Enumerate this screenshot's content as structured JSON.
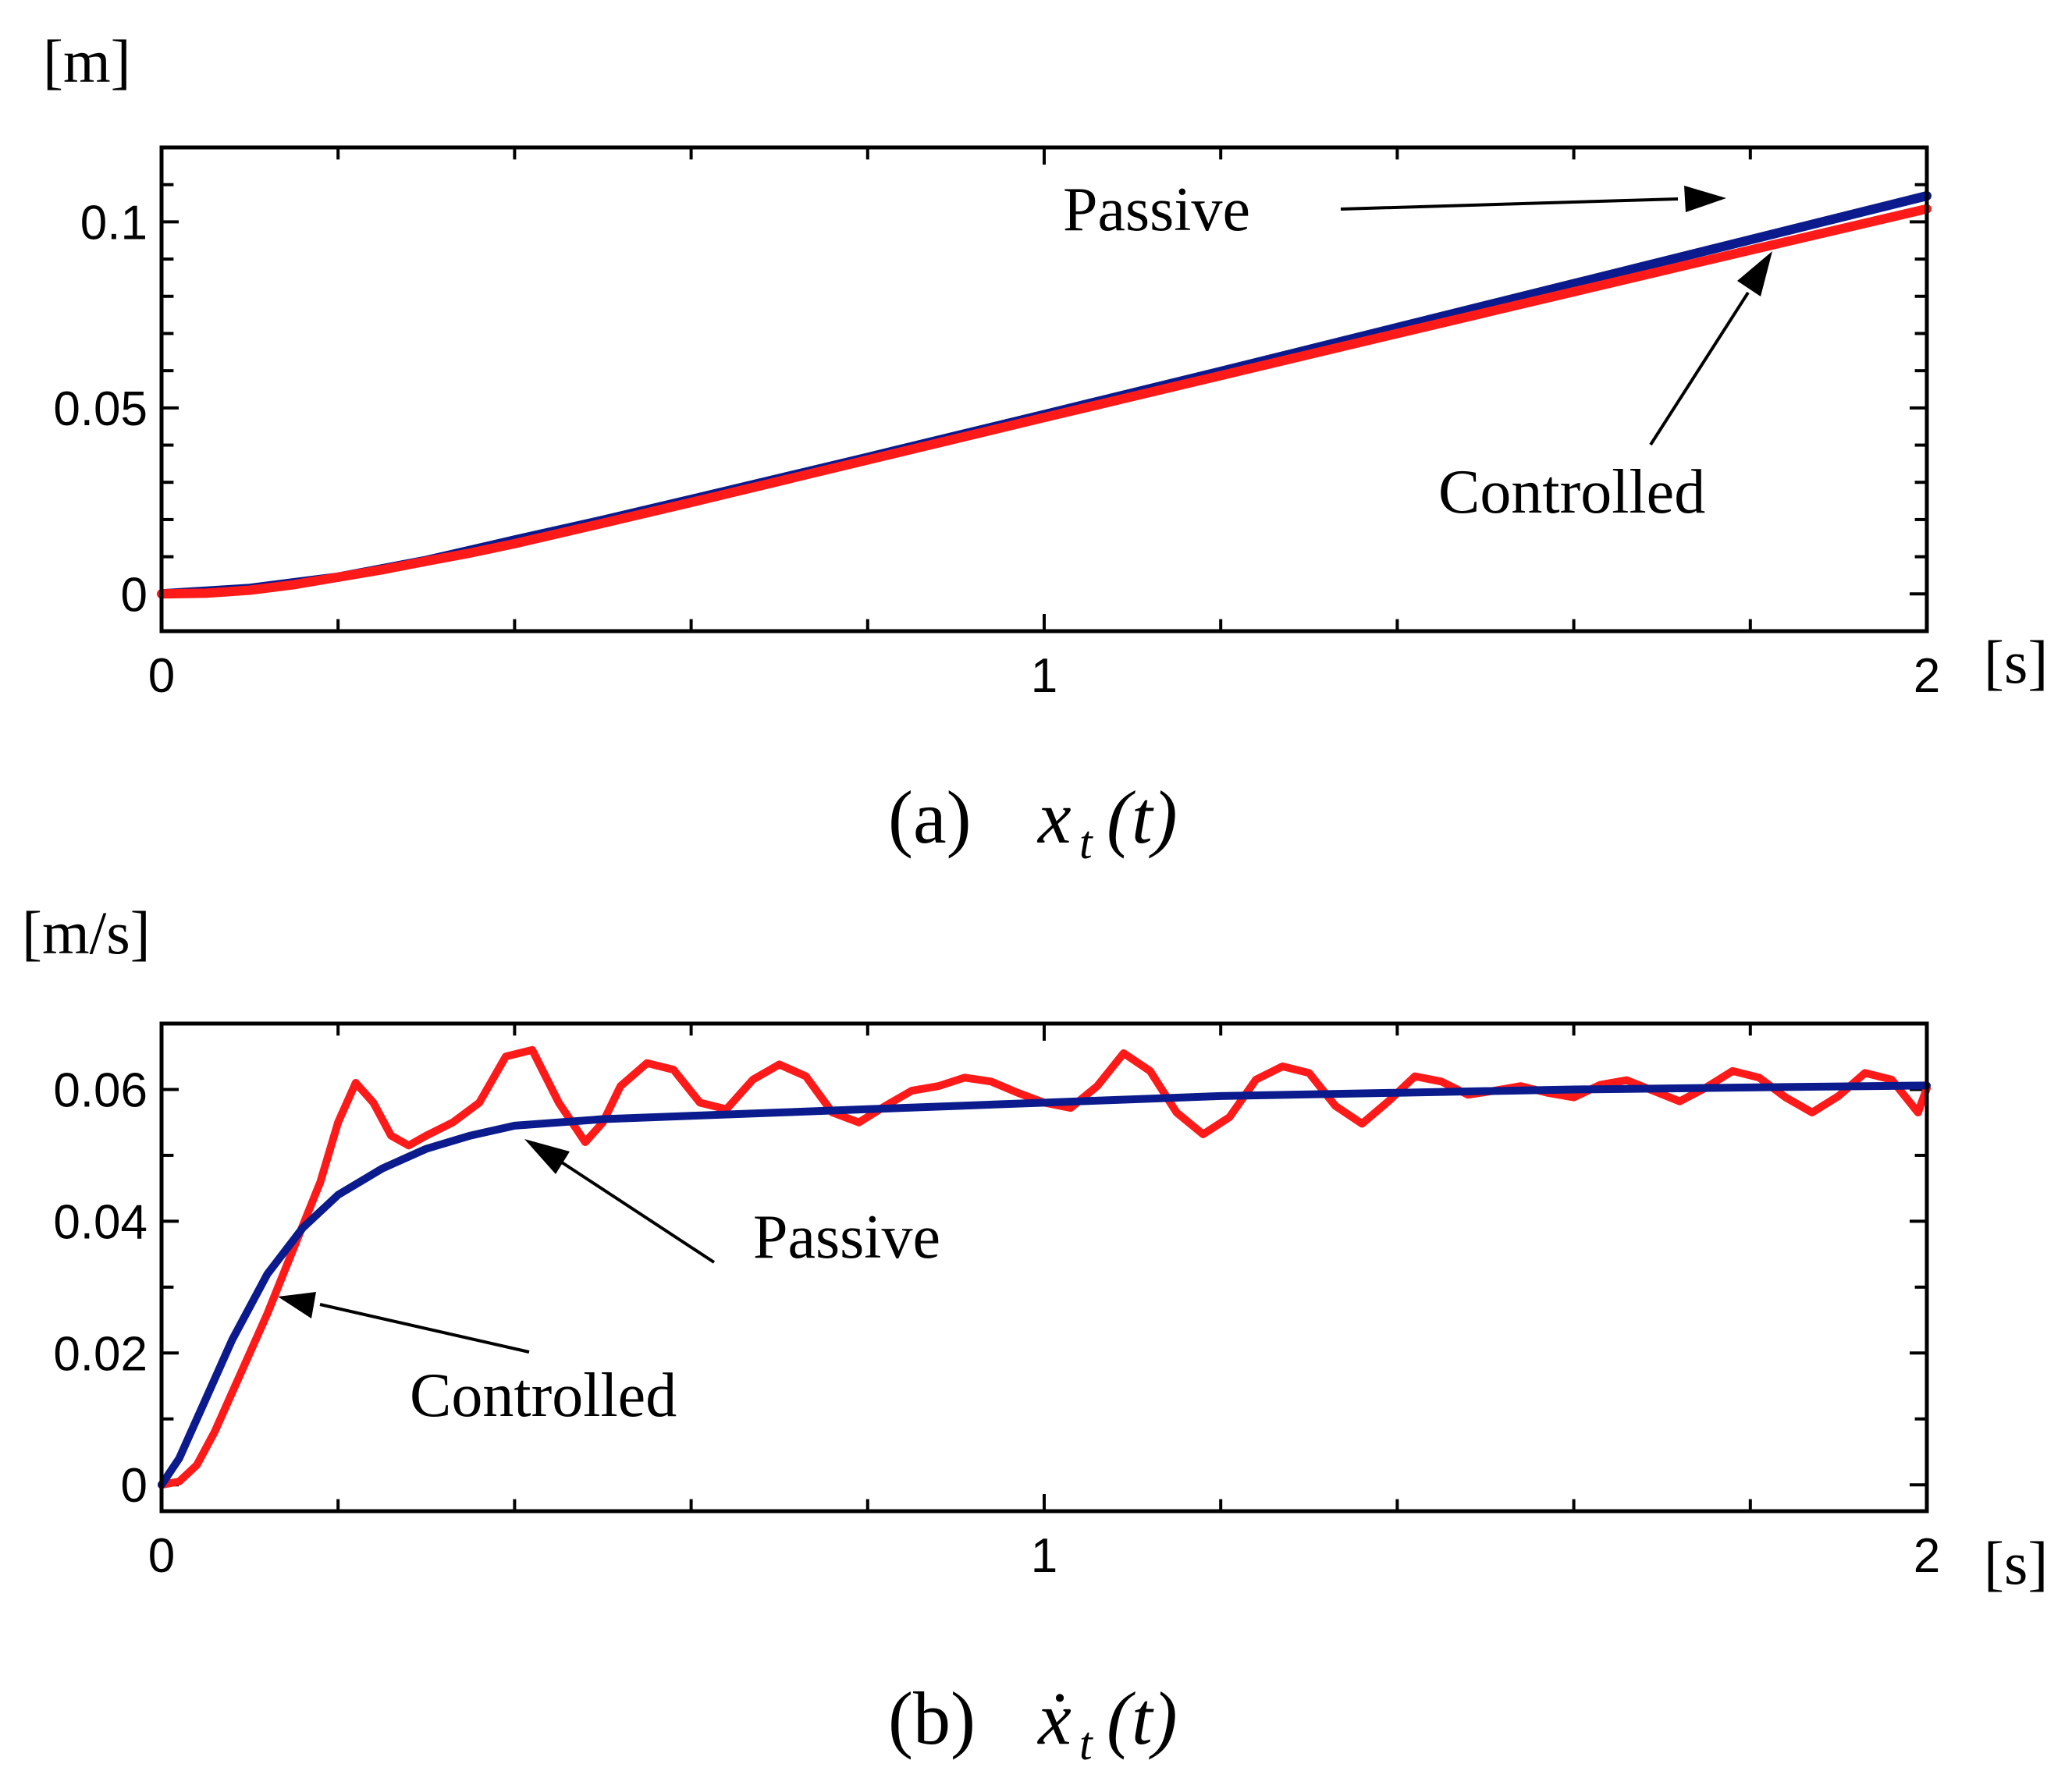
{
  "chart_data": [
    {
      "type": "line",
      "panel": "a",
      "caption": {
        "label": "(a)",
        "symbol": "x",
        "subscript": "t",
        "argument": "(t)"
      },
      "ylabel": "[m]",
      "xlabel": "[s]",
      "xlim": [
        0,
        2
      ],
      "ylim": [
        -0.01,
        0.12
      ],
      "xticks_labeled": [
        0,
        1,
        2
      ],
      "xtick_labels": [
        "0",
        "1",
        "2"
      ],
      "xticks_minor": [
        0.2,
        0.4,
        0.6,
        0.8,
        1.2,
        1.4,
        1.6,
        1.8
      ],
      "yticks_labeled": [
        0,
        0.05,
        0.1
      ],
      "ytick_labels": [
        "0",
        "0.05",
        "0.1"
      ],
      "yticks_minor": [
        0.01,
        0.02,
        0.03,
        0.04,
        0.06,
        0.07,
        0.08,
        0.09,
        0.11
      ],
      "series": [
        {
          "name": "Passive",
          "color": "#0b1a8c",
          "x": [
            0,
            0.1,
            0.2,
            0.3,
            0.4,
            0.5,
            0.6,
            0.8,
            1.0,
            1.2,
            1.4,
            1.6,
            1.8,
            2.0
          ],
          "y": [
            0,
            0.0015,
            0.0045,
            0.009,
            0.0145,
            0.0198,
            0.0254,
            0.0367,
            0.0482,
            0.0598,
            0.0716,
            0.0834,
            0.0952,
            0.107
          ]
        },
        {
          "name": "Controlled",
          "color": "#ff1a1a",
          "x": [
            0,
            0.05,
            0.1,
            0.15,
            0.2,
            0.25,
            0.3,
            0.35,
            0.4,
            0.5,
            0.6,
            0.8,
            1.0,
            1.2,
            1.4,
            1.6,
            1.8,
            2.0
          ],
          "y": [
            0,
            0.0002,
            0.001,
            0.0025,
            0.0045,
            0.0065,
            0.0088,
            0.011,
            0.0135,
            0.019,
            0.0246,
            0.036,
            0.0474,
            0.0587,
            0.07,
            0.0812,
            0.0924,
            0.1035
          ]
        }
      ],
      "annotations": [
        {
          "text": "Passive",
          "target_series": "Passive",
          "target_x": 1.8
        },
        {
          "text": "Controlled",
          "target_series": "Controlled",
          "target_x": 1.83
        }
      ]
    },
    {
      "type": "line",
      "panel": "b",
      "caption": {
        "label": "(b)",
        "symbol": "ẋ",
        "subscript": "t",
        "argument": "(t)"
      },
      "ylabel": "[m/s]",
      "xlabel": "[s]",
      "xlim": [
        0,
        2
      ],
      "ylim": [
        -0.004,
        0.07
      ],
      "xticks_labeled": [
        0,
        1,
        2
      ],
      "xtick_labels": [
        "0",
        "1",
        "2"
      ],
      "xticks_minor": [
        0.2,
        0.4,
        0.6,
        0.8,
        1.2,
        1.4,
        1.6,
        1.8
      ],
      "yticks_labeled": [
        0,
        0.02,
        0.04,
        0.06
      ],
      "ytick_labels": [
        "0",
        "0.02",
        "0.04",
        "0.06"
      ],
      "yticks_minor": [
        0.01,
        0.03,
        0.05
      ],
      "series": [
        {
          "name": "Passive",
          "color": "#0b1a8c",
          "x": [
            0,
            0.02,
            0.05,
            0.08,
            0.12,
            0.16,
            0.2,
            0.25,
            0.3,
            0.35,
            0.4,
            0.5,
            0.6,
            0.7,
            0.8,
            0.9,
            1.0,
            1.2,
            1.4,
            1.6,
            1.8,
            2.0
          ],
          "y": [
            0,
            0.004,
            0.013,
            0.022,
            0.032,
            0.039,
            0.044,
            0.048,
            0.051,
            0.053,
            0.0545,
            0.0555,
            0.056,
            0.0565,
            0.057,
            0.0575,
            0.058,
            0.059,
            0.0595,
            0.06,
            0.0603,
            0.0606
          ]
        },
        {
          "name": "Controlled",
          "color": "#ff1a1a",
          "x": [
            0,
            0.02,
            0.04,
            0.06,
            0.09,
            0.12,
            0.15,
            0.18,
            0.2,
            0.22,
            0.24,
            0.26,
            0.28,
            0.3,
            0.33,
            0.36,
            0.39,
            0.42,
            0.45,
            0.48,
            0.5,
            0.52,
            0.55,
            0.58,
            0.61,
            0.64,
            0.67,
            0.7,
            0.73,
            0.76,
            0.79,
            0.82,
            0.85,
            0.88,
            0.91,
            0.94,
            0.97,
            1.0,
            1.03,
            1.06,
            1.09,
            1.12,
            1.15,
            1.18,
            1.21,
            1.24,
            1.27,
            1.3,
            1.33,
            1.36,
            1.39,
            1.42,
            1.45,
            1.48,
            1.51,
            1.54,
            1.57,
            1.6,
            1.63,
            1.66,
            1.69,
            1.72,
            1.75,
            1.78,
            1.81,
            1.84,
            1.87,
            1.9,
            1.93,
            1.96,
            1.99,
            2.0
          ],
          "y": [
            0,
            0.0005,
            0.003,
            0.008,
            0.017,
            0.026,
            0.036,
            0.046,
            0.055,
            0.061,
            0.058,
            0.053,
            0.0515,
            0.053,
            0.055,
            0.058,
            0.065,
            0.066,
            0.058,
            0.052,
            0.055,
            0.0605,
            0.064,
            0.063,
            0.058,
            0.057,
            0.0615,
            0.0638,
            0.062,
            0.0565,
            0.055,
            0.0575,
            0.0598,
            0.0605,
            0.0618,
            0.0612,
            0.0595,
            0.058,
            0.0572,
            0.0605,
            0.0655,
            0.0628,
            0.0565,
            0.0532,
            0.0558,
            0.0615,
            0.0635,
            0.0625,
            0.0575,
            0.0548,
            0.0582,
            0.062,
            0.0612,
            0.0592,
            0.0598,
            0.0605,
            0.0595,
            0.0588,
            0.0607,
            0.0614,
            0.0598,
            0.0582,
            0.0603,
            0.0628,
            0.0618,
            0.0588,
            0.0565,
            0.059,
            0.0625,
            0.0615,
            0.0565,
            0.0602
          ]
        }
      ],
      "annotations": [
        {
          "text": "Passive",
          "target_series": "Passive",
          "target_x": 0.42
        },
        {
          "text": "Controlled",
          "target_series": "Controlled",
          "target_x": 0.13
        }
      ]
    }
  ]
}
